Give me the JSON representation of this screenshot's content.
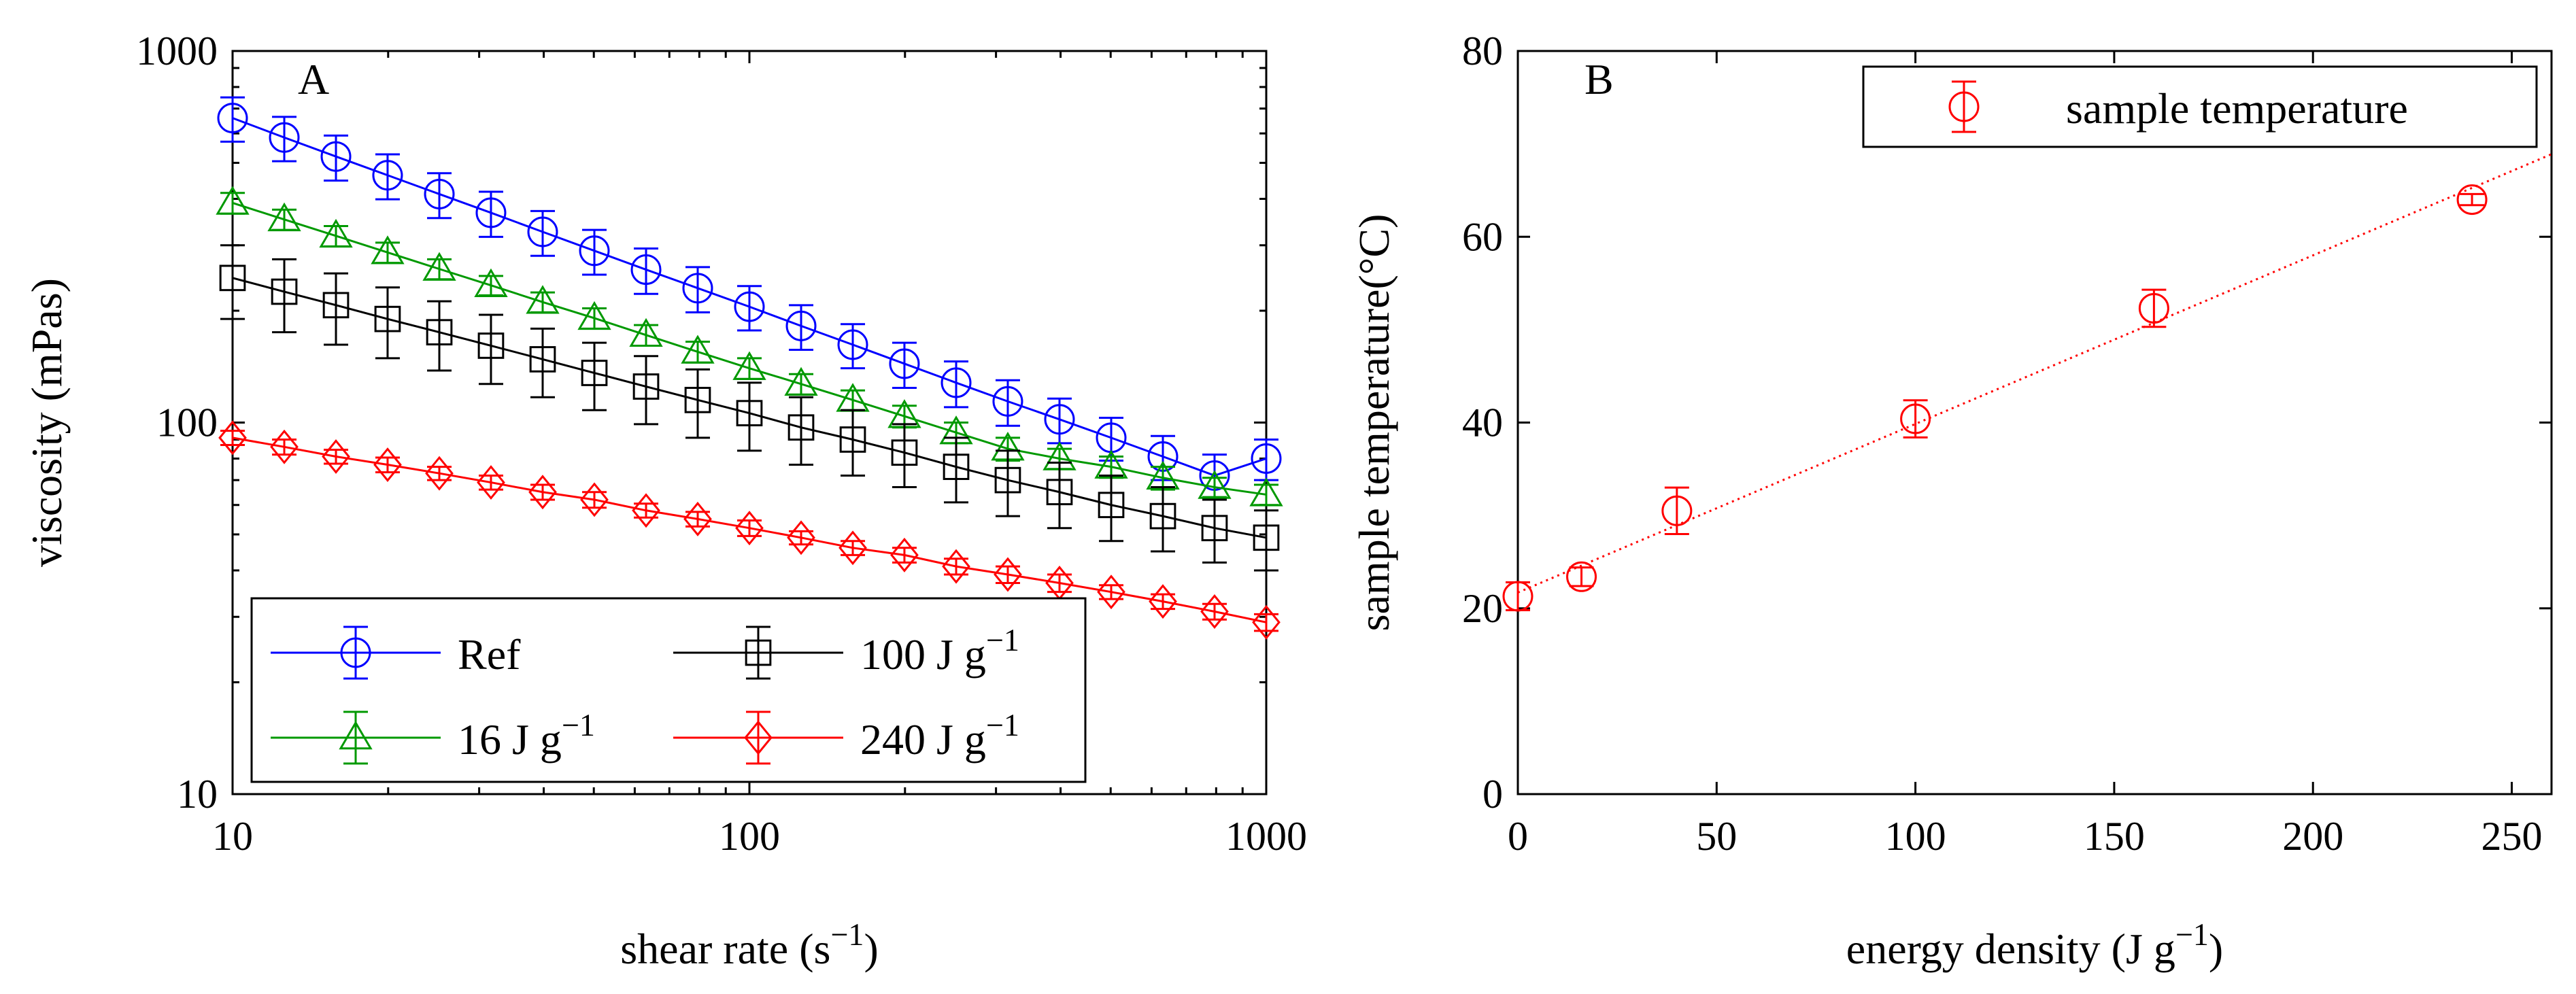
{
  "colors": {
    "blue": "#0000ff",
    "green": "#009900",
    "black": "#000000",
    "red": "#ff0000"
  },
  "chart_data": [
    {
      "type": "line",
      "panel_label": "A",
      "xscale": "log",
      "yscale": "log",
      "xlim": [
        10,
        1000
      ],
      "ylim": [
        10,
        1000
      ],
      "xlabel": "shear rate (s",
      "xlabel_sup": "−1",
      "xlabel_end": ")",
      "ylabel": "viscosity (mPas)",
      "xticks": [
        10,
        100,
        1000
      ],
      "xtick_labels": [
        "10",
        "100",
        "1000"
      ],
      "yticks": [
        10,
        100,
        1000
      ],
      "ytick_labels": [
        "10",
        "100",
        "1000"
      ],
      "x": [
        10,
        12.59,
        15.85,
        19.95,
        25.12,
        31.62,
        39.81,
        50.12,
        63.1,
        79.43,
        100,
        125.9,
        158.5,
        199.5,
        251.2,
        316.2,
        398.1,
        501.2,
        631,
        794.3,
        1000
      ],
      "legend_position": "bottom-left",
      "series": [
        {
          "name": "Ref",
          "color": "blue",
          "marker": "circle",
          "values": [
            660,
            585,
            520,
            463,
            412,
            367,
            326,
            290,
            258,
            230,
            205,
            182,
            162,
            144,
            128,
            114,
            102,
            91,
            81,
            72,
            80
          ],
          "errors": [
            90,
            80,
            72,
            64,
            57,
            51,
            45,
            40,
            36,
            32,
            28,
            25,
            22,
            20,
            18,
            16,
            14,
            12,
            11,
            10,
            10
          ]
        },
        {
          "name": "16 J g",
          "name_sup": "−1",
          "color": "green",
          "marker": "triangle",
          "values": [
            390,
            352,
            318,
            287,
            259,
            234,
            211,
            191,
            172,
            155,
            140,
            127,
            115,
            104,
            94,
            85,
            80,
            76,
            71,
            67,
            64
          ],
          "errors": [
            25,
            22,
            20,
            18,
            16,
            14,
            13,
            12,
            11,
            10,
            9,
            8,
            7,
            7,
            6,
            6,
            5,
            5,
            5,
            4,
            4
          ]
        },
        {
          "name": "100 J g",
          "name_sup": "−1",
          "color": "black",
          "marker": "square",
          "values": [
            245,
            225,
            207,
            190,
            175,
            161,
            148,
            136,
            125,
            115,
            106,
            97,
            90,
            83,
            76,
            70,
            65,
            60,
            56,
            52,
            49
          ],
          "errors": [
            55,
            50,
            45,
            41,
            37,
            34,
            31,
            28,
            26,
            24,
            22,
            20,
            18,
            16,
            15,
            14,
            13,
            12,
            11,
            10,
            9
          ]
        },
        {
          "name": "240 J g",
          "name_sup": "−1",
          "color": "red",
          "marker": "diamond",
          "values": [
            91,
            86,
            81,
            77,
            73,
            69,
            65,
            62,
            58,
            55,
            52,
            49,
            46,
            44,
            41,
            39,
            37,
            35,
            33,
            31,
            29
          ],
          "errors": [
            4,
            4,
            3.5,
            3.5,
            3,
            3,
            3,
            3,
            2.5,
            2.5,
            2.5,
            2,
            2,
            2,
            2,
            2,
            2,
            1.5,
            1.5,
            1.5,
            1.5
          ]
        }
      ]
    },
    {
      "type": "scatter",
      "panel_label": "B",
      "xlim": [
        0,
        260
      ],
      "ylim": [
        0,
        80
      ],
      "xlabel": "energy density (J g",
      "xlabel_sup": "−1",
      "xlabel_end": ")",
      "ylabel": "sample temperature(°C)",
      "xticks": [
        0,
        50,
        100,
        150,
        200,
        250
      ],
      "xtick_labels": [
        "0",
        "50",
        "100",
        "150",
        "200",
        "250"
      ],
      "yticks": [
        0,
        20,
        40,
        60,
        80
      ],
      "ytick_labels": [
        "0",
        "20",
        "40",
        "60",
        "80"
      ],
      "legend_position": "top-right",
      "series": [
        {
          "name": "sample temperature",
          "color": "red",
          "marker": "circle",
          "x": [
            0,
            16,
            40,
            100,
            160,
            240
          ],
          "values": [
            21.3,
            23.4,
            30.5,
            40.4,
            52.3,
            64
          ],
          "errors": [
            1.5,
            1,
            2.5,
            2,
            2,
            0.6
          ]
        }
      ],
      "trendline": {
        "color": "red",
        "style": "dotted",
        "intercept": 21.7,
        "slope": 0.1815
      }
    }
  ]
}
